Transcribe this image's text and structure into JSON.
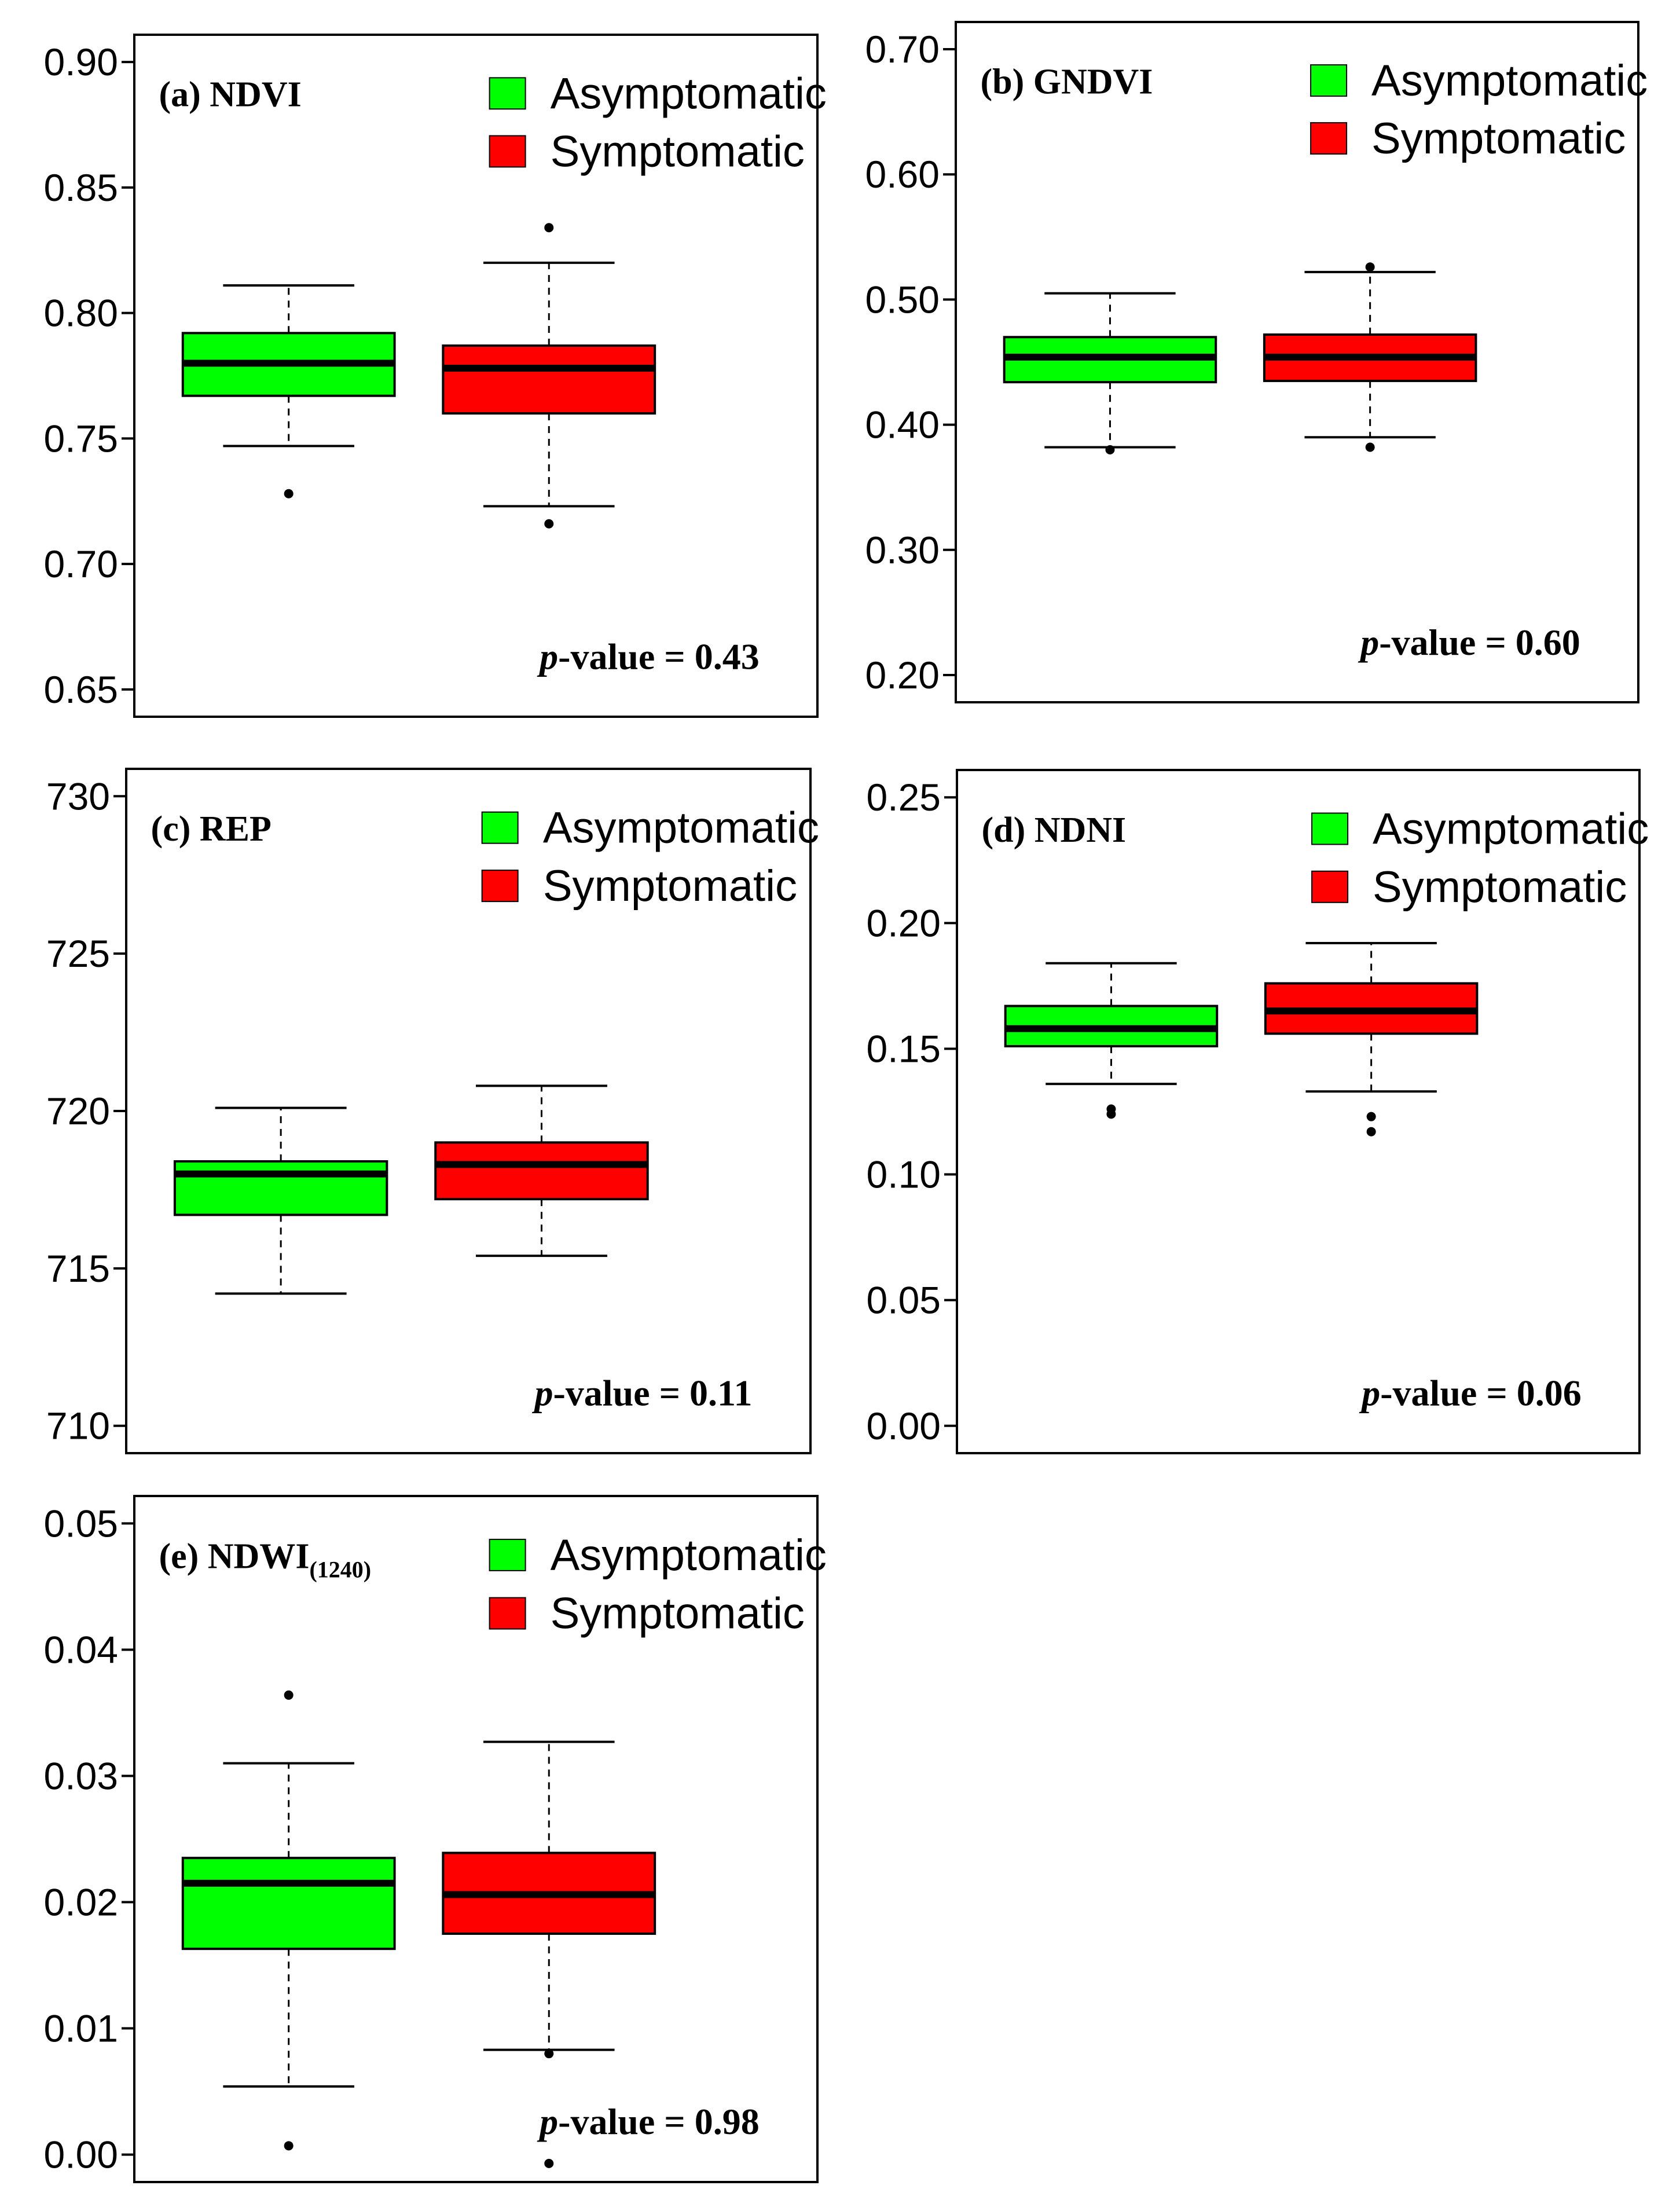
{
  "figure": {
    "background": "#ffffff"
  },
  "colors": {
    "asymptomatic": "#00ff00",
    "symptomatic": "#ff0000",
    "stroke": "#000000"
  },
  "chart_data": [
    {
      "type": "boxplot",
      "panel_label": "(a)",
      "title": "NDVI",
      "title_sub": "",
      "ylim": [
        0.65,
        0.9
      ],
      "yticks": [
        "0.65",
        "0.70",
        "0.75",
        "0.80",
        "0.85",
        "0.90"
      ],
      "legend": [
        "Asymptomatic",
        "Symptomatic"
      ],
      "p_prefix": "p",
      "p_text": "-value = 0.43",
      "series": [
        {
          "name": "Asymptomatic",
          "color": "#00ff00",
          "whisker_low": 0.747,
          "q1": 0.767,
          "median": 0.78,
          "q3": 0.792,
          "whisker_high": 0.811,
          "outliers": [
            0.728
          ]
        },
        {
          "name": "Symptomatic",
          "color": "#ff0000",
          "whisker_low": 0.723,
          "q1": 0.76,
          "median": 0.778,
          "q3": 0.787,
          "whisker_high": 0.82,
          "outliers": [
            0.834,
            0.716
          ]
        }
      ]
    },
    {
      "type": "boxplot",
      "panel_label": "(b)",
      "title": "GNDVI",
      "title_sub": "",
      "ylim": [
        0.2,
        0.7
      ],
      "yticks": [
        "0.20",
        "0.30",
        "0.40",
        "0.50",
        "0.60",
        "0.70"
      ],
      "legend": [
        "Asymptomatic",
        "Symptomatic"
      ],
      "p_prefix": "p",
      "p_text": "-value = 0.60",
      "series": [
        {
          "name": "Asymptomatic",
          "color": "#00ff00",
          "whisker_low": 0.382,
          "q1": 0.434,
          "median": 0.454,
          "q3": 0.47,
          "whisker_high": 0.505,
          "outliers": [
            0.38
          ]
        },
        {
          "name": "Symptomatic",
          "color": "#ff0000",
          "whisker_low": 0.39,
          "q1": 0.435,
          "median": 0.454,
          "q3": 0.472,
          "whisker_high": 0.522,
          "outliers": [
            0.526,
            0.382
          ]
        }
      ]
    },
    {
      "type": "boxplot",
      "panel_label": "(c)",
      "title": "REP",
      "title_sub": "",
      "ylim": [
        710,
        730
      ],
      "yticks": [
        "710",
        "715",
        "720",
        "725",
        "730"
      ],
      "legend": [
        "Asymptomatic",
        "Symptomatic"
      ],
      "p_prefix": "p",
      "p_text": "-value = 0.11",
      "series": [
        {
          "name": "Asymptomatic",
          "color": "#00ff00",
          "whisker_low": 714.2,
          "q1": 716.7,
          "median": 718.0,
          "q3": 718.4,
          "whisker_high": 720.1,
          "outliers": []
        },
        {
          "name": "Symptomatic",
          "color": "#ff0000",
          "whisker_low": 715.4,
          "q1": 717.2,
          "median": 718.3,
          "q3": 719.0,
          "whisker_high": 720.8,
          "outliers": []
        }
      ]
    },
    {
      "type": "boxplot",
      "panel_label": "(d)",
      "title": "NDNI",
      "title_sub": "",
      "ylim": [
        0.0,
        0.25
      ],
      "yticks": [
        "0.00",
        "0.05",
        "0.10",
        "0.15",
        "0.20",
        "0.25"
      ],
      "legend": [
        "Asymptomatic",
        "Symptomatic"
      ],
      "p_prefix": "p",
      "p_text": "-value = 0.06",
      "series": [
        {
          "name": "Asymptomatic",
          "color": "#00ff00",
          "whisker_low": 0.136,
          "q1": 0.151,
          "median": 0.158,
          "q3": 0.167,
          "whisker_high": 0.184,
          "outliers": [
            0.126,
            0.124
          ]
        },
        {
          "name": "Symptomatic",
          "color": "#ff0000",
          "whisker_low": 0.133,
          "q1": 0.156,
          "median": 0.165,
          "q3": 0.176,
          "whisker_high": 0.192,
          "outliers": [
            0.123,
            0.117
          ]
        }
      ]
    },
    {
      "type": "boxplot",
      "panel_label": "(e)",
      "title": "NDWI",
      "title_sub": "(1240)",
      "ylim": [
        0.0,
        0.05
      ],
      "yticks": [
        "0.00",
        "0.01",
        "0.02",
        "0.03",
        "0.04",
        "0.05"
      ],
      "legend": [
        "Asymptomatic",
        "Symptomatic"
      ],
      "p_prefix": "p",
      "p_text": "-value = 0.98",
      "series": [
        {
          "name": "Asymptomatic",
          "color": "#00ff00",
          "whisker_low": 0.0054,
          "q1": 0.0163,
          "median": 0.0215,
          "q3": 0.0235,
          "whisker_high": 0.031,
          "outliers": [
            0.0364,
            0.0007
          ]
        },
        {
          "name": "Symptomatic",
          "color": "#ff0000",
          "whisker_low": 0.0083,
          "q1": 0.0175,
          "median": 0.0206,
          "q3": 0.0239,
          "whisker_high": 0.0327,
          "outliers": [
            0.008,
            -0.0007
          ]
        }
      ]
    }
  ]
}
